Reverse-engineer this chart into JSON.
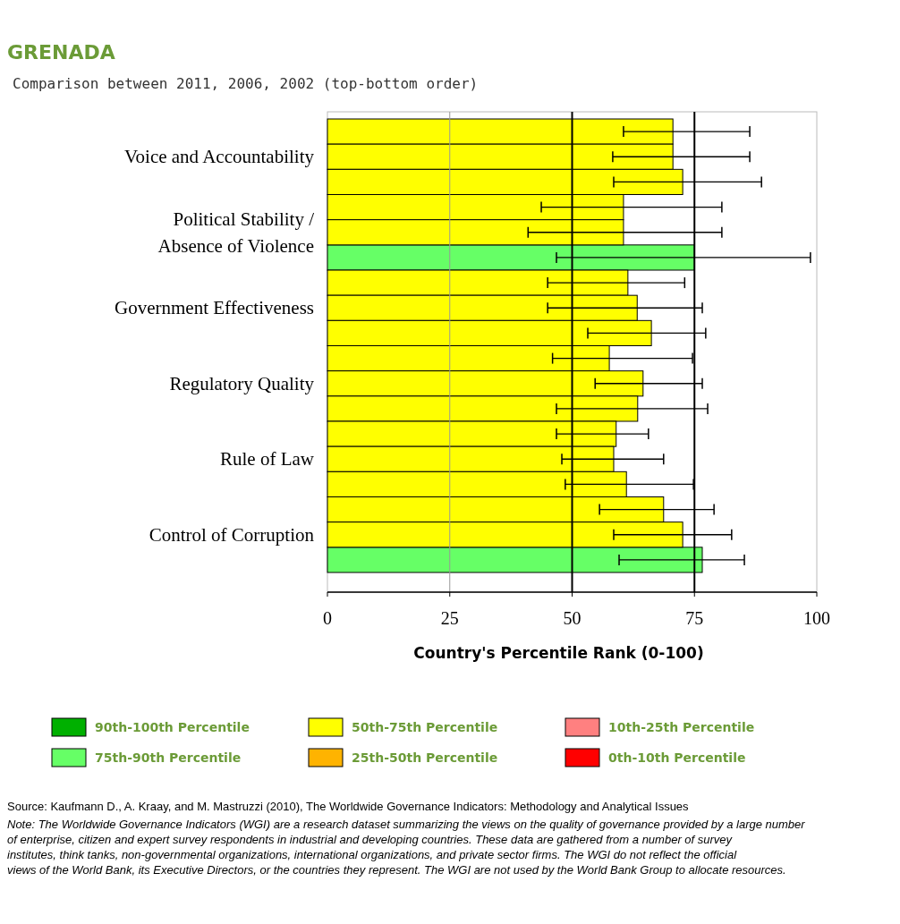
{
  "chart_data": {
    "type": "bar",
    "orientation": "horizontal",
    "title": "GRENADA",
    "subtitle": "Comparison between 2011, 2006, 2002 (top-bottom order)",
    "xlabel": "Country's Percentile Rank (0-100)",
    "categories": [
      null,
      "Voice and Accountability",
      null,
      null,
      "Political Stability / Absence of Violence",
      null,
      null,
      "Government Effectiveness",
      null,
      null,
      "Regulatory Quality",
      null,
      null,
      "Rule of Law",
      null,
      null,
      "Control of Corruption",
      null
    ],
    "xlim": [
      0,
      100
    ],
    "xticks": [
      0,
      25,
      50,
      75,
      100
    ],
    "legend": "bottom",
    "ref_lines": [
      {
        "axis": "x",
        "value": 25,
        "color": "#999999"
      },
      {
        "axis": "x",
        "value": 50,
        "color": "#000000"
      },
      {
        "axis": "x",
        "value": 75,
        "color": "#000000"
      }
    ],
    "series": [
      {
        "name": "90th-100th Percentile",
        "color": "#00b000",
        "values": [
          null,
          null,
          null,
          null,
          null,
          null,
          null,
          null,
          null,
          null,
          null,
          null,
          null,
          null,
          null,
          null,
          null,
          null
        ],
        "errors": [
          null,
          null,
          null,
          null,
          null,
          null,
          null,
          null,
          null,
          null,
          null,
          null,
          null,
          null,
          null,
          null,
          null,
          null
        ]
      },
      {
        "name": "75th-90th Percentile",
        "color": "#66ff66",
        "values": [
          null,
          null,
          null,
          null,
          null,
          75,
          null,
          null,
          null,
          null,
          null,
          null,
          null,
          null,
          null,
          null,
          null,
          76.6
        ],
        "errors": [
          null,
          null,
          null,
          null,
          null,
          [
            46.8,
            98.7
          ],
          null,
          null,
          null,
          null,
          null,
          null,
          null,
          null,
          null,
          null,
          null,
          [
            59.6,
            85.2
          ]
        ]
      },
      {
        "name": "50th-75th Percentile",
        "color": "#ffff00",
        "values": [
          70.6,
          70.6,
          72.6,
          60.5,
          60.5,
          null,
          61.4,
          63.3,
          66.2,
          57.6,
          64.5,
          63.4,
          59,
          58.5,
          61.1,
          68.7,
          72.6,
          null
        ],
        "errors": [
          [
            60.5,
            86.3
          ],
          [
            58.3,
            86.3
          ],
          [
            58.5,
            88.7
          ],
          [
            43.7,
            80.6
          ],
          [
            41,
            80.6
          ],
          null,
          [
            45,
            73
          ],
          [
            45,
            76.6
          ],
          [
            53.2,
            77.3
          ],
          [
            46,
            74.6
          ],
          [
            54.7,
            76.6
          ],
          [
            46.8,
            77.7
          ],
          [
            46.8,
            65.6
          ],
          [
            47.9,
            68.7
          ],
          [
            48.6,
            74.8
          ],
          [
            55.6,
            79
          ],
          [
            58.5,
            82.6
          ],
          null
        ]
      },
      {
        "name": "25th-50th Percentile",
        "color": "#ffb300",
        "values": [
          null,
          null,
          null,
          null,
          null,
          null,
          null,
          null,
          null,
          null,
          null,
          null,
          null,
          null,
          null,
          null,
          null,
          null
        ],
        "errors": [
          null,
          null,
          null,
          null,
          null,
          null,
          null,
          null,
          null,
          null,
          null,
          null,
          null,
          null,
          null,
          null,
          null,
          null
        ]
      },
      {
        "name": "10th-25th Percentile",
        "color": "#ff8080",
        "values": [
          null,
          null,
          null,
          null,
          null,
          null,
          null,
          null,
          null,
          null,
          null,
          null,
          null,
          null,
          null,
          null,
          null,
          null
        ],
        "errors": [
          null,
          null,
          null,
          null,
          null,
          null,
          null,
          null,
          null,
          null,
          null,
          null,
          null,
          null,
          null,
          null,
          null,
          null
        ]
      },
      {
        "name": "0th-10th Percentile",
        "color": "#ff0000",
        "values": [
          null,
          null,
          null,
          null,
          null,
          null,
          null,
          null,
          null,
          null,
          null,
          null,
          null,
          null,
          null,
          null,
          null,
          null
        ],
        "errors": [
          null,
          null,
          null,
          null,
          null,
          null,
          null,
          null,
          null,
          null,
          null,
          null,
          null,
          null,
          null,
          null,
          null,
          null
        ]
      }
    ],
    "annotations": [
      "Source: Kaufmann D., A. Kraay, and M. Mastruzzi (2010), The Worldwide Governance Indicators: Methodology and Analytical Issues",
      "Note: The Worldwide Governance Indicators (WGI) are a research dataset summarizing the views on the quality of governance provided by a large number of enterprise, citizen and expert survey respondents in industrial and developing countries. These data are gathered from a number of survey institutes, think tanks, non-governmental organizations, international organizations, and private sector firms. The WGI do not reflect the official views of the World Bank, its Executive Directors, or the countries they represent. The WGI are not used by the World Bank Group to allocate resources."
    ]
  }
}
